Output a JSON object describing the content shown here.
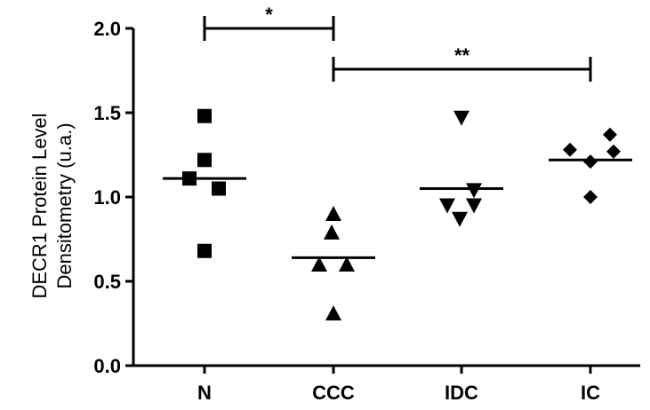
{
  "chart_data": {
    "type": "dotplot",
    "ylabel": [
      "DECR1 Protein Level",
      "Densitometry (u.a.)"
    ],
    "ylim": [
      0,
      2
    ],
    "yticks": [
      {
        "value": 0,
        "label": "0.0"
      },
      {
        "value": 0.5,
        "label": "0.5"
      },
      {
        "value": 1,
        "label": "1.0"
      },
      {
        "value": 1.5,
        "label": "1.5"
      },
      {
        "value": 2,
        "label": "2.0"
      }
    ],
    "color": "#000000",
    "series": [
      {
        "name": "N",
        "marker": "square",
        "values": [
          1.48,
          1.22,
          1.11,
          1.05,
          0.68
        ],
        "mean": 1.11
      },
      {
        "name": "CCC",
        "marker": "triangle-up",
        "values": [
          0.9,
          0.79,
          0.6,
          0.6,
          0.31
        ],
        "mean": 0.64
      },
      {
        "name": "IDC",
        "marker": "triangle-down",
        "values": [
          1.47,
          1.04,
          0.95,
          0.95,
          0.87
        ],
        "mean": 1.05
      },
      {
        "name": "IC",
        "marker": "diamond",
        "values": [
          1.37,
          1.28,
          1.27,
          1.21,
          1.0
        ],
        "mean": 1.22
      }
    ],
    "annotations": [
      {
        "text": "*",
        "between": [
          "N",
          "CCC"
        ]
      },
      {
        "text": "**",
        "between": [
          "CCC",
          "IC"
        ]
      }
    ]
  }
}
